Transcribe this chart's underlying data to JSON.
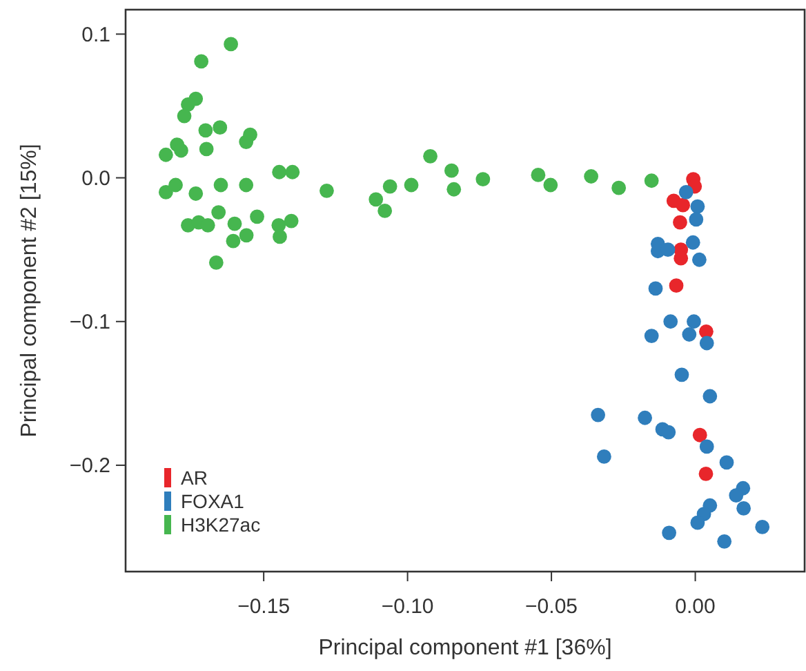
{
  "chart_data": {
    "type": "scatter",
    "xlabel": "Principal component #1 [36%]",
    "ylabel": "Principal component #2 [15%]",
    "xlim": [
      -0.198,
      0.038
    ],
    "ylim": [
      -0.274,
      0.117
    ],
    "xticks": [
      {
        "value": -0.15,
        "label": "−0.15"
      },
      {
        "value": -0.1,
        "label": "−0.10"
      },
      {
        "value": -0.05,
        "label": "−0.05"
      },
      {
        "value": 0,
        "label": "0.00"
      }
    ],
    "yticks": [
      {
        "value": 0.1,
        "label": "0.1"
      },
      {
        "value": 0,
        "label": "0.0"
      },
      {
        "value": -0.1,
        "label": "−0.1"
      },
      {
        "value": -0.2,
        "label": "−0.2"
      }
    ],
    "grid": false,
    "legend": "bottom left",
    "marker": "circle",
    "series": [
      {
        "name": "AR",
        "color": "#e8262b",
        "x": [
          -0.0007,
          -0.0002,
          -0.0075,
          -0.0043,
          -0.0053,
          -0.005,
          -0.005,
          -0.0066,
          0.0038,
          0.0016,
          0.0037
        ],
        "values": [
          -0.001,
          -0.006,
          -0.016,
          -0.019,
          -0.031,
          -0.05,
          -0.056,
          -0.075,
          -0.107,
          -0.179,
          -0.206
        ]
      },
      {
        "name": "FOXA1",
        "color": "#2f7ebc",
        "x": [
          -0.0032,
          0.0008,
          0.0003,
          -0.013,
          -0.013,
          -0.0095,
          -0.0008,
          0.0014,
          -0.0138,
          -0.0086,
          -0.0005,
          -0.0152,
          -0.0021,
          0.004,
          -0.0047,
          0.0051,
          -0.0338,
          -0.0175,
          -0.0114,
          -0.0093,
          0.004,
          0.0109,
          -0.0317,
          0.0166,
          0.0142,
          0.0051,
          0.003,
          0.0008,
          0.0168,
          0.0233,
          -0.0091,
          0.0101
        ],
        "values": [
          -0.01,
          -0.02,
          -0.029,
          -0.046,
          -0.051,
          -0.05,
          -0.045,
          -0.057,
          -0.077,
          -0.1,
          -0.1,
          -0.11,
          -0.109,
          -0.115,
          -0.137,
          -0.152,
          -0.165,
          -0.167,
          -0.175,
          -0.177,
          -0.187,
          -0.198,
          -0.194,
          -0.216,
          -0.221,
          -0.228,
          -0.234,
          -0.24,
          -0.23,
          -0.243,
          -0.247,
          -0.253
        ]
      },
      {
        "name": "H3K27ac",
        "color": "#46b64f",
        "x": [
          -0.1614,
          -0.1717,
          -0.1736,
          -0.1763,
          -0.1776,
          -0.1702,
          -0.1652,
          -0.1547,
          -0.1561,
          -0.1801,
          -0.1787,
          -0.184,
          -0.1699,
          -0.1446,
          -0.14,
          -0.1281,
          -0.184,
          -0.1806,
          -0.1736,
          -0.1649,
          -0.1561,
          -0.1657,
          -0.1763,
          -0.1726,
          -0.1694,
          -0.1601,
          -0.1523,
          -0.1606,
          -0.156,
          -0.1448,
          -0.1404,
          -0.1444,
          -0.1665,
          -0.111,
          -0.1079,
          -0.1061,
          -0.0987,
          -0.0921,
          -0.0847,
          -0.0839,
          -0.0738,
          -0.0546,
          -0.0503,
          -0.0362,
          -0.0266,
          -0.0152
        ],
        "values": [
          0.093,
          0.081,
          0.055,
          0.051,
          0.043,
          0.033,
          0.035,
          0.03,
          0.025,
          0.023,
          0.019,
          0.016,
          0.02,
          0.004,
          0.004,
          -0.009,
          -0.01,
          -0.005,
          -0.011,
          -0.005,
          -0.005,
          -0.024,
          -0.033,
          -0.031,
          -0.033,
          -0.032,
          -0.027,
          -0.044,
          -0.04,
          -0.033,
          -0.03,
          -0.041,
          -0.059,
          -0.015,
          -0.023,
          -0.006,
          -0.005,
          0.015,
          0.005,
          -0.008,
          -0.001,
          0.002,
          -0.005,
          0.001,
          -0.007,
          -0.002
        ]
      }
    ]
  }
}
